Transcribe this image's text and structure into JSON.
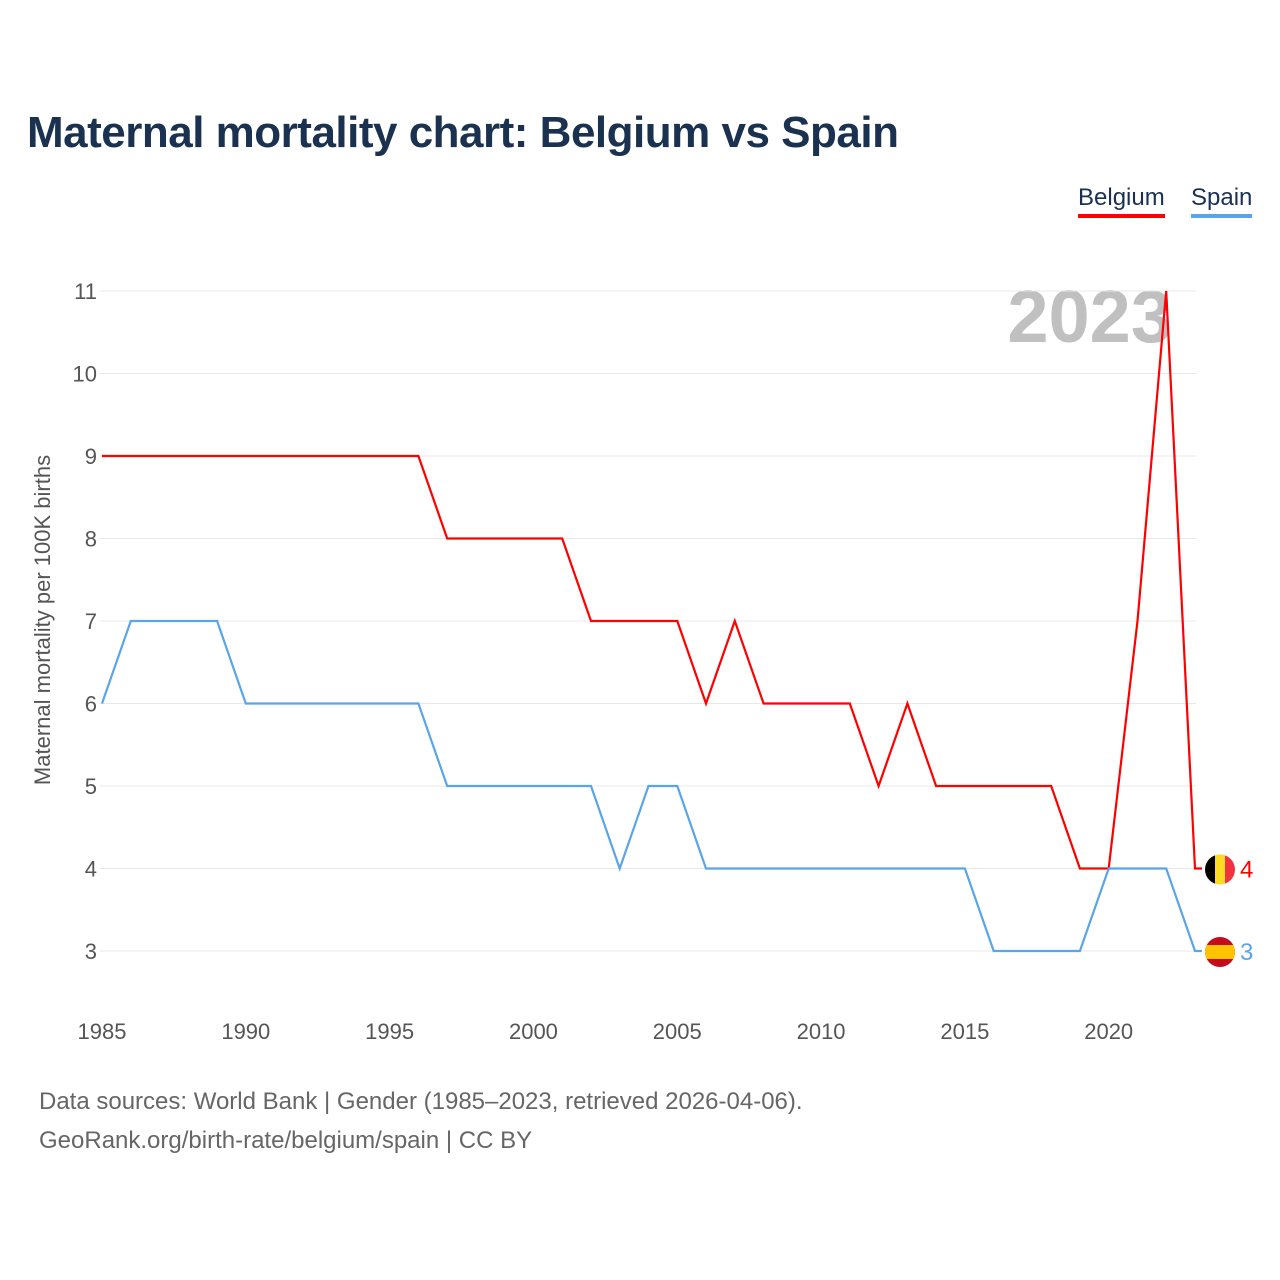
{
  "chart_data": {
    "type": "line",
    "title": "Maternal mortality chart: Belgium vs Spain",
    "xlabel": "",
    "ylabel": "Maternal mortality per 100K births",
    "xlim": [
      1985,
      2023
    ],
    "ylim": [
      2.5,
      11
    ],
    "yticks": [
      3,
      4,
      5,
      6,
      7,
      8,
      9,
      10,
      11
    ],
    "xticks": [
      1985,
      1990,
      1995,
      2000,
      2005,
      2010,
      2015,
      2020
    ],
    "grid": true,
    "legend_position": "top-right",
    "year_watermark": "2023",
    "x": [
      1985,
      1986,
      1987,
      1988,
      1989,
      1990,
      1991,
      1992,
      1993,
      1994,
      1995,
      1996,
      1997,
      1998,
      1999,
      2000,
      2001,
      2002,
      2003,
      2004,
      2005,
      2006,
      2007,
      2008,
      2009,
      2010,
      2011,
      2012,
      2013,
      2014,
      2015,
      2016,
      2017,
      2018,
      2019,
      2020,
      2021,
      2022,
      2023
    ],
    "series": [
      {
        "name": "Belgium",
        "color": "#ff0000",
        "flag": "belgium-flag",
        "end_label": "4",
        "values": [
          9,
          9,
          9,
          9,
          9,
          9,
          9,
          9,
          9,
          9,
          9,
          9,
          8,
          8,
          8,
          8,
          8,
          7,
          7,
          7,
          7,
          6,
          7,
          6,
          6,
          6,
          6,
          5,
          6,
          5,
          5,
          5,
          5,
          5,
          4,
          4,
          7,
          11,
          4
        ]
      },
      {
        "name": "Spain",
        "color": "#5aa5ea",
        "flag": "spain-flag",
        "end_label": "3",
        "values": [
          6,
          7,
          7,
          7,
          7,
          6,
          6,
          6,
          6,
          6,
          6,
          6,
          5,
          5,
          5,
          5,
          5,
          5,
          4,
          5,
          5,
          4,
          4,
          4,
          4,
          4,
          4,
          4,
          4,
          4,
          4,
          3,
          3,
          3,
          3,
          4,
          4,
          4,
          3
        ]
      }
    ]
  },
  "footer": {
    "line1": "Data sources: World Bank | Gender (1985–2023, retrieved 2026-04-06).",
    "line2": "GeoRank.org/birth-rate/belgium/spain | CC BY"
  }
}
